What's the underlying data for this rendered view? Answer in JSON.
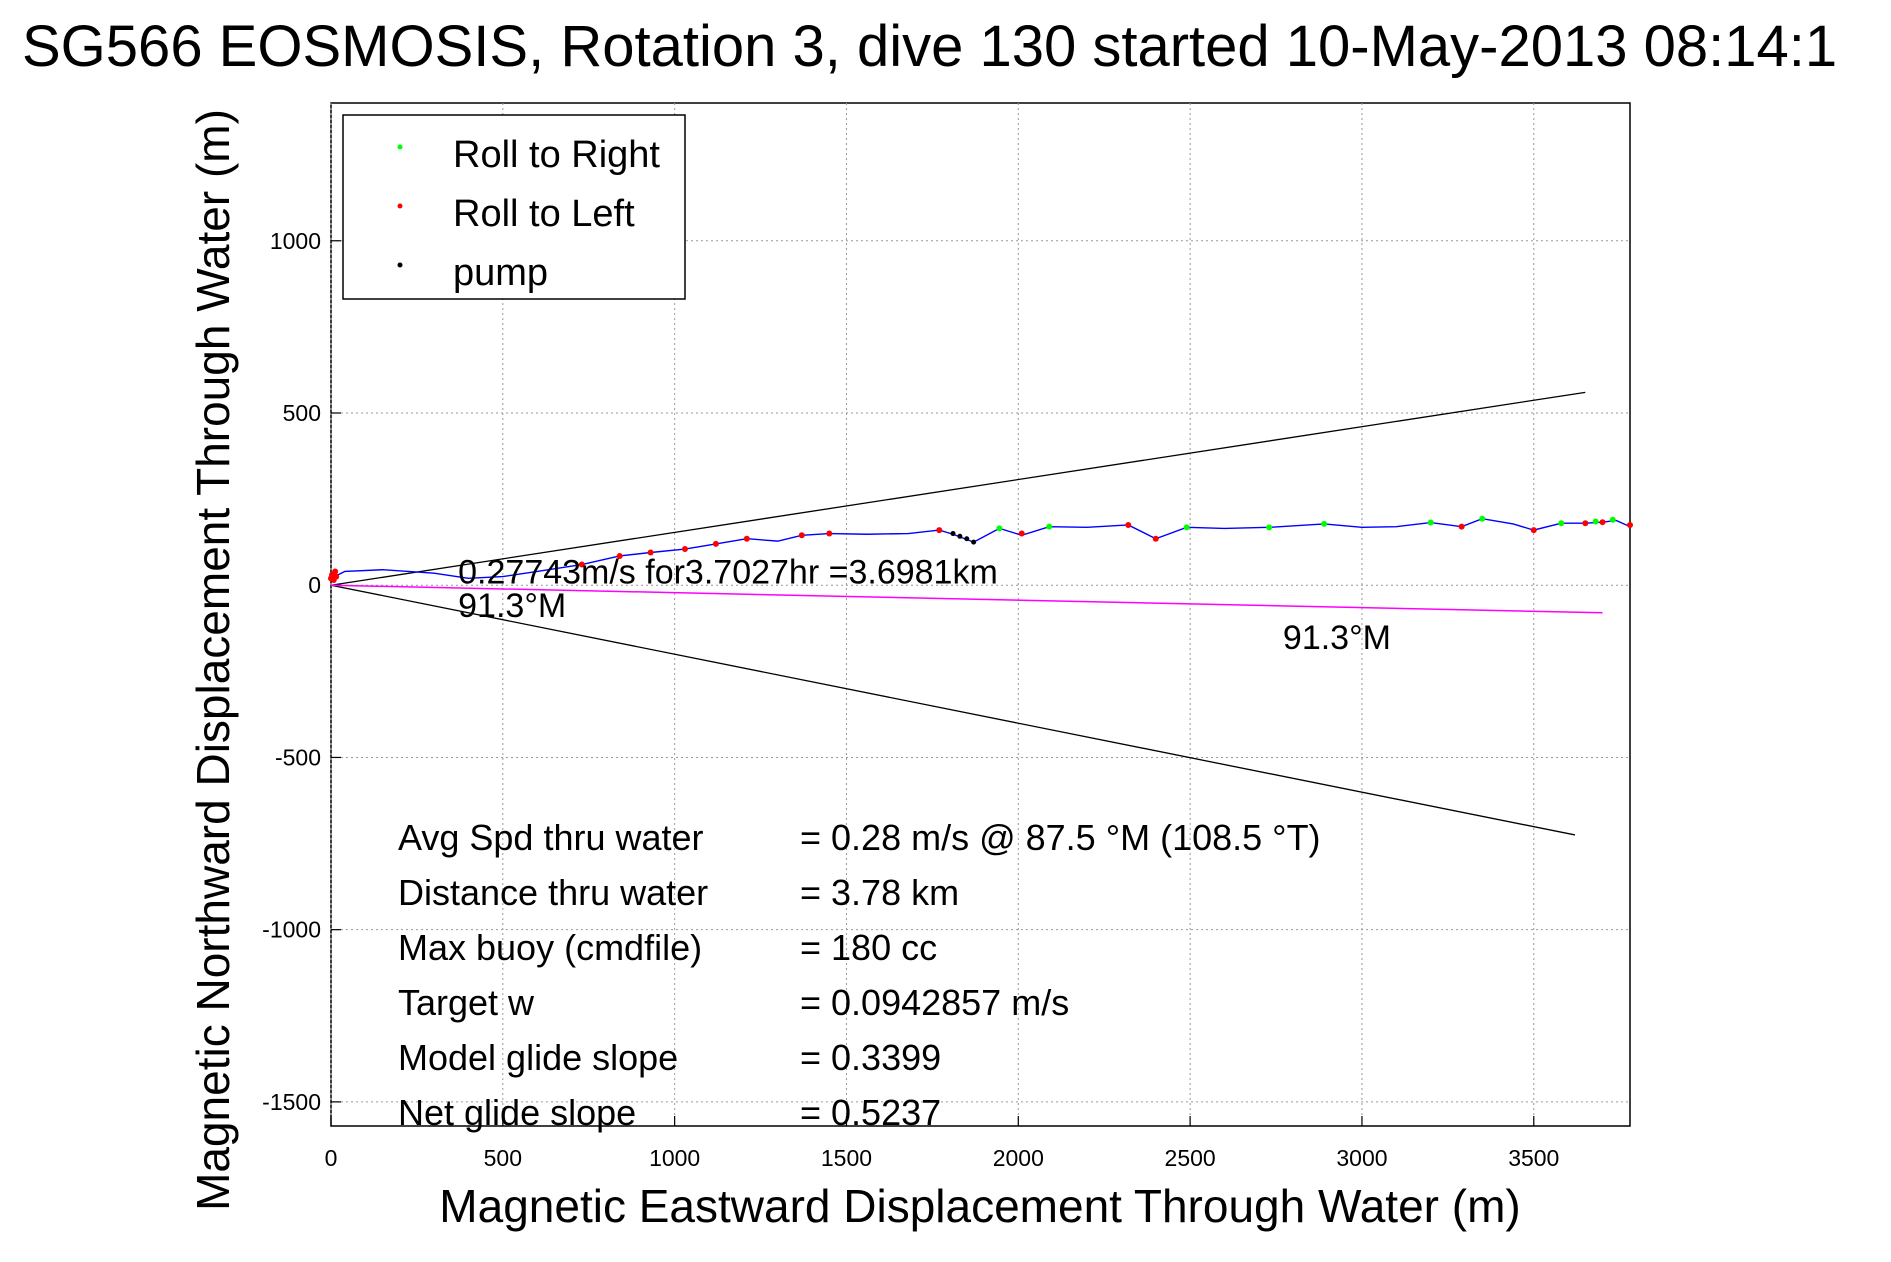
{
  "chart_data": {
    "type": "scatter",
    "title": "SG566 EOSMOSIS, Rotation 3, dive 130 started 10-May-2013 08:14:1",
    "xlabel": "Magnetic Eastward Displacement Through Water (m)",
    "ylabel": "Magnetic Northward Displacement Through Water (m)",
    "xlim": [
      0,
      3780
    ],
    "ylim": [
      -1570,
      1400
    ],
    "xticks": [
      0,
      500,
      1000,
      1500,
      2000,
      2500,
      3000,
      3500
    ],
    "yticks": [
      -1500,
      -1000,
      -500,
      0,
      500,
      1000
    ],
    "grid": true,
    "legend_position": "top-left",
    "colors": {
      "track": "#0000ff",
      "roll_right": "#00ff00",
      "roll_left": "#ff0000",
      "pump": "#000000",
      "mean_track": "#ff00ff",
      "bounds": "#000000"
    },
    "series": [
      {
        "name": "Roll to Right",
        "color": "#00ff00",
        "x": [
          1945,
          2090,
          2490,
          2730,
          2890,
          3200,
          3350,
          3580,
          3680,
          3730
        ],
        "y": [
          165,
          170,
          168,
          168,
          178,
          182,
          193,
          180,
          185,
          190
        ]
      },
      {
        "name": "Roll to Left",
        "color": "#ff0000",
        "x": [
          0,
          3,
          8,
          12,
          15,
          730,
          840,
          930,
          1030,
          1120,
          1210,
          1370,
          1450,
          1770,
          2010,
          2320,
          2400,
          3290,
          3500,
          3650,
          3700,
          3780
        ],
        "y": [
          20,
          30,
          15,
          40,
          25,
          60,
          85,
          95,
          105,
          120,
          135,
          145,
          150,
          160,
          150,
          175,
          135,
          170,
          160,
          180,
          183,
          175
        ]
      },
      {
        "name": "pump",
        "color": "#000000",
        "x": [
          1810,
          1830,
          1850,
          1870
        ],
        "y": [
          150,
          142,
          135,
          125
        ]
      }
    ],
    "track": {
      "x": [
        0,
        40,
        150,
        300,
        400,
        500,
        600,
        730,
        840,
        930,
        1030,
        1120,
        1210,
        1300,
        1370,
        1450,
        1560,
        1680,
        1770,
        1810,
        1870,
        1945,
        2010,
        2090,
        2200,
        2320,
        2400,
        2490,
        2600,
        2730,
        2890,
        3000,
        3100,
        3200,
        3290,
        3350,
        3440,
        3500,
        3580,
        3650,
        3700,
        3740,
        3780
      ],
      "y": [
        20,
        40,
        45,
        35,
        20,
        25,
        40,
        60,
        85,
        95,
        105,
        120,
        135,
        128,
        145,
        150,
        148,
        150,
        160,
        148,
        125,
        165,
        145,
        170,
        168,
        175,
        135,
        168,
        165,
        168,
        178,
        168,
        170,
        182,
        170,
        193,
        178,
        160,
        180,
        180,
        183,
        188,
        170
      ]
    },
    "mean_track": {
      "x": [
        0,
        3700
      ],
      "y": [
        0,
        -80
      ]
    },
    "bounds": [
      {
        "x": [
          0,
          3650
        ],
        "y": [
          0,
          560
        ]
      },
      {
        "x": [
          0,
          3620
        ],
        "y": [
          0,
          -725
        ]
      }
    ],
    "annotations": [
      {
        "text": "0.27743m/s for3.7027hr =3.6981km",
        "x": 370,
        "y": 5
      },
      {
        "text": "91.3°M",
        "x": 370,
        "y": -92
      },
      {
        "text": "91.3°M",
        "x": 2770,
        "y": -185
      }
    ],
    "stats": [
      {
        "label": "Avg Spd thru water",
        "value": "=  0.28 m/s @  87.5 °M (108.5 °T)"
      },
      {
        "label": "Distance thru water",
        "value": "=  3.78 km"
      },
      {
        "label": "Max buoy (cmdfile)",
        "value": "= 180 cc"
      },
      {
        "label": "Target w",
        "value": "= 0.0942857 m/s"
      },
      {
        "label": "Model glide slope",
        "value": "= 0.3399"
      },
      {
        "label": "Net glide slope",
        "value": "= 0.5237"
      }
    ]
  }
}
